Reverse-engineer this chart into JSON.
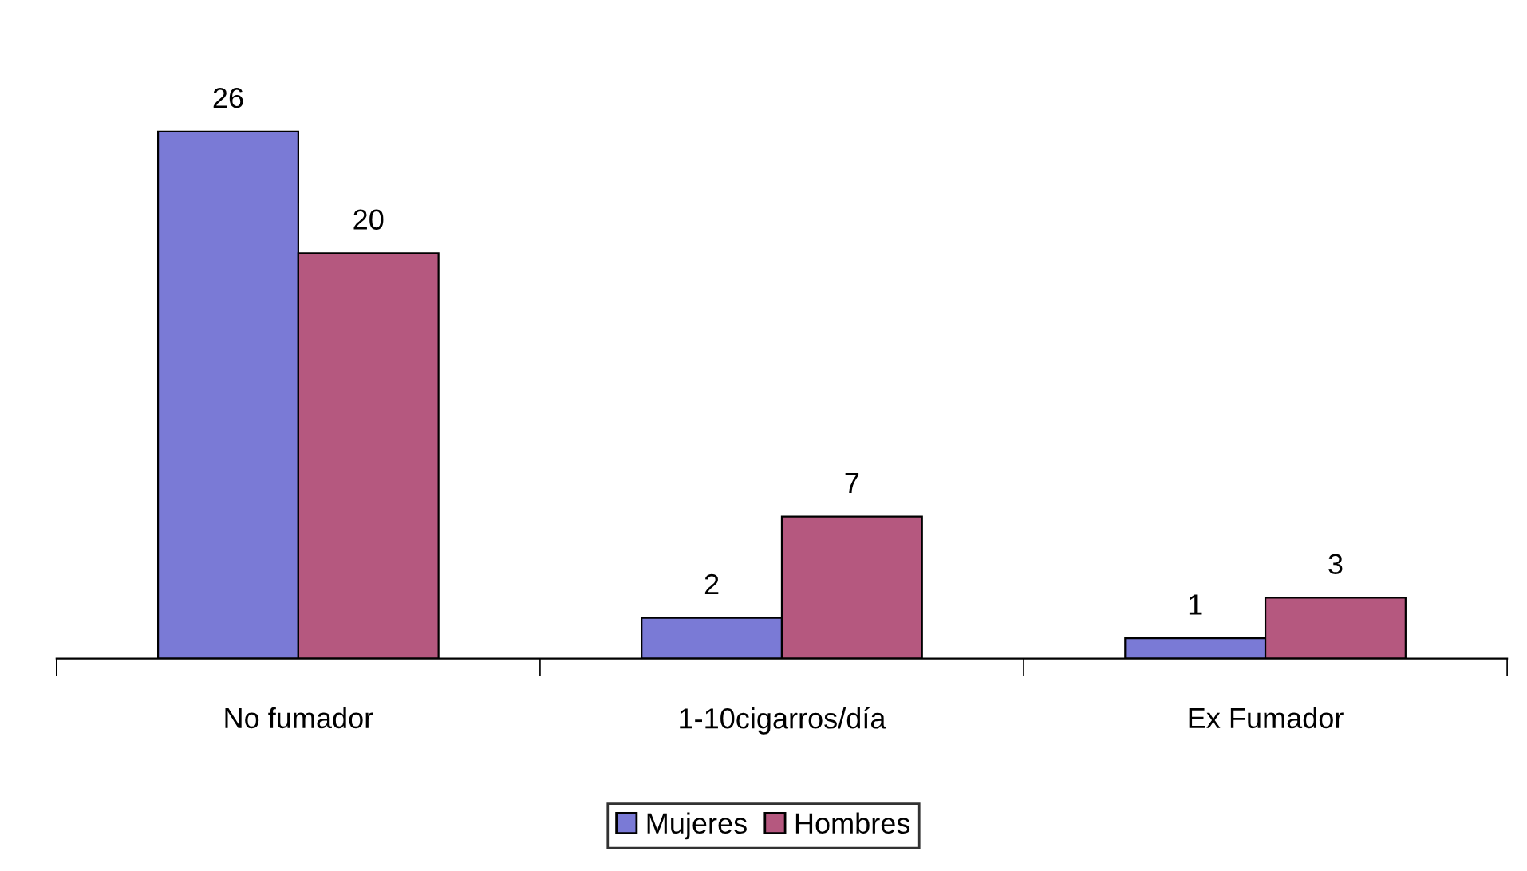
{
  "chart_data": {
    "type": "bar",
    "categories": [
      "No fumador",
      "1-10cigarros/día",
      "Ex Fumador"
    ],
    "series": [
      {
        "name": "Mujeres",
        "color": "#7a7ad6",
        "values": [
          26,
          2,
          1
        ]
      },
      {
        "name": "Hombres",
        "color": "#b5587f",
        "values": [
          20,
          7,
          3
        ]
      }
    ],
    "data_labels": true,
    "legend": "bottom",
    "grid": false
  }
}
